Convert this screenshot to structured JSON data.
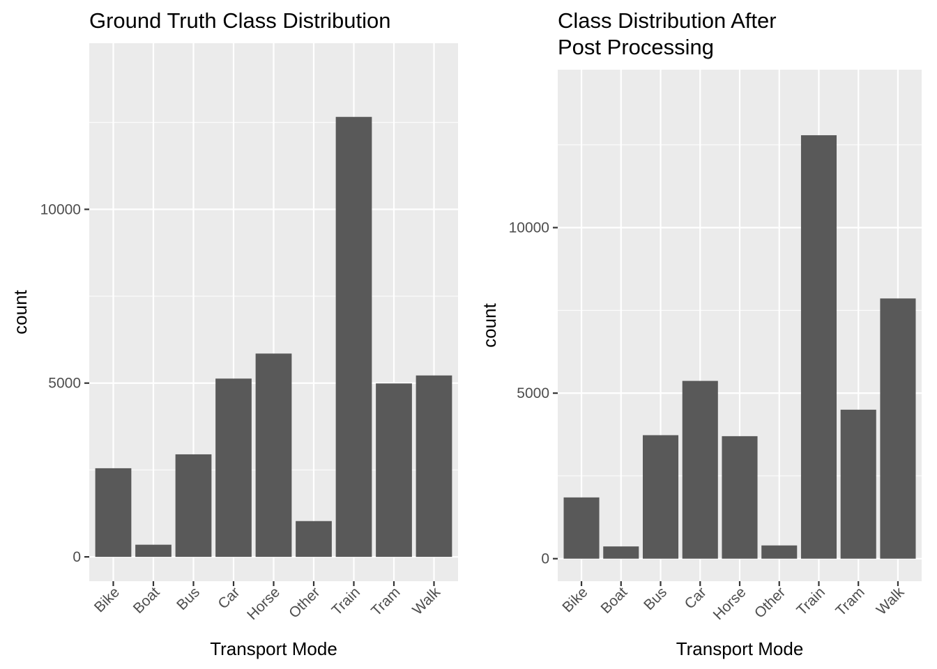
{
  "colors": {
    "panel_background": "#ebebeb",
    "grid_major": "#ffffff",
    "bar_fill": "#595959",
    "tick_mark": "#333333",
    "tick_text": "#4d4d4d"
  },
  "chart_data": [
    {
      "type": "bar",
      "title": "Ground Truth Class Distribution",
      "xlabel": "Transport Mode",
      "ylabel": "count",
      "categories": [
        "Bike",
        "Boat",
        "Bus",
        "Car",
        "Horse",
        "Other",
        "Train",
        "Tram",
        "Walk"
      ],
      "values": [
        2550,
        350,
        2950,
        5130,
        5850,
        1030,
        12660,
        4990,
        5220
      ],
      "ylim": [
        -700,
        14780
      ],
      "yticks": [
        0,
        5000,
        10000
      ],
      "ytick_labels": [
        "0",
        "5000",
        "10000"
      ],
      "grid": true,
      "legend": "none"
    },
    {
      "type": "bar",
      "title": "Class Distribution After Post Processing",
      "title_lines": [
        "Class Distribution After",
        "Post Processing"
      ],
      "xlabel": "Transport Mode",
      "ylabel": "count",
      "categories": [
        "Bike",
        "Boat",
        "Bus",
        "Car",
        "Horse",
        "Other",
        "Train",
        "Tram",
        "Walk"
      ],
      "values": [
        1850,
        370,
        3730,
        5370,
        3700,
        400,
        12790,
        4500,
        7860
      ],
      "ylim": [
        -680,
        14770
      ],
      "yticks": [
        0,
        5000,
        10000
      ],
      "ytick_labels": [
        "0",
        "5000",
        "10000"
      ],
      "grid": true,
      "legend": "none"
    }
  ]
}
